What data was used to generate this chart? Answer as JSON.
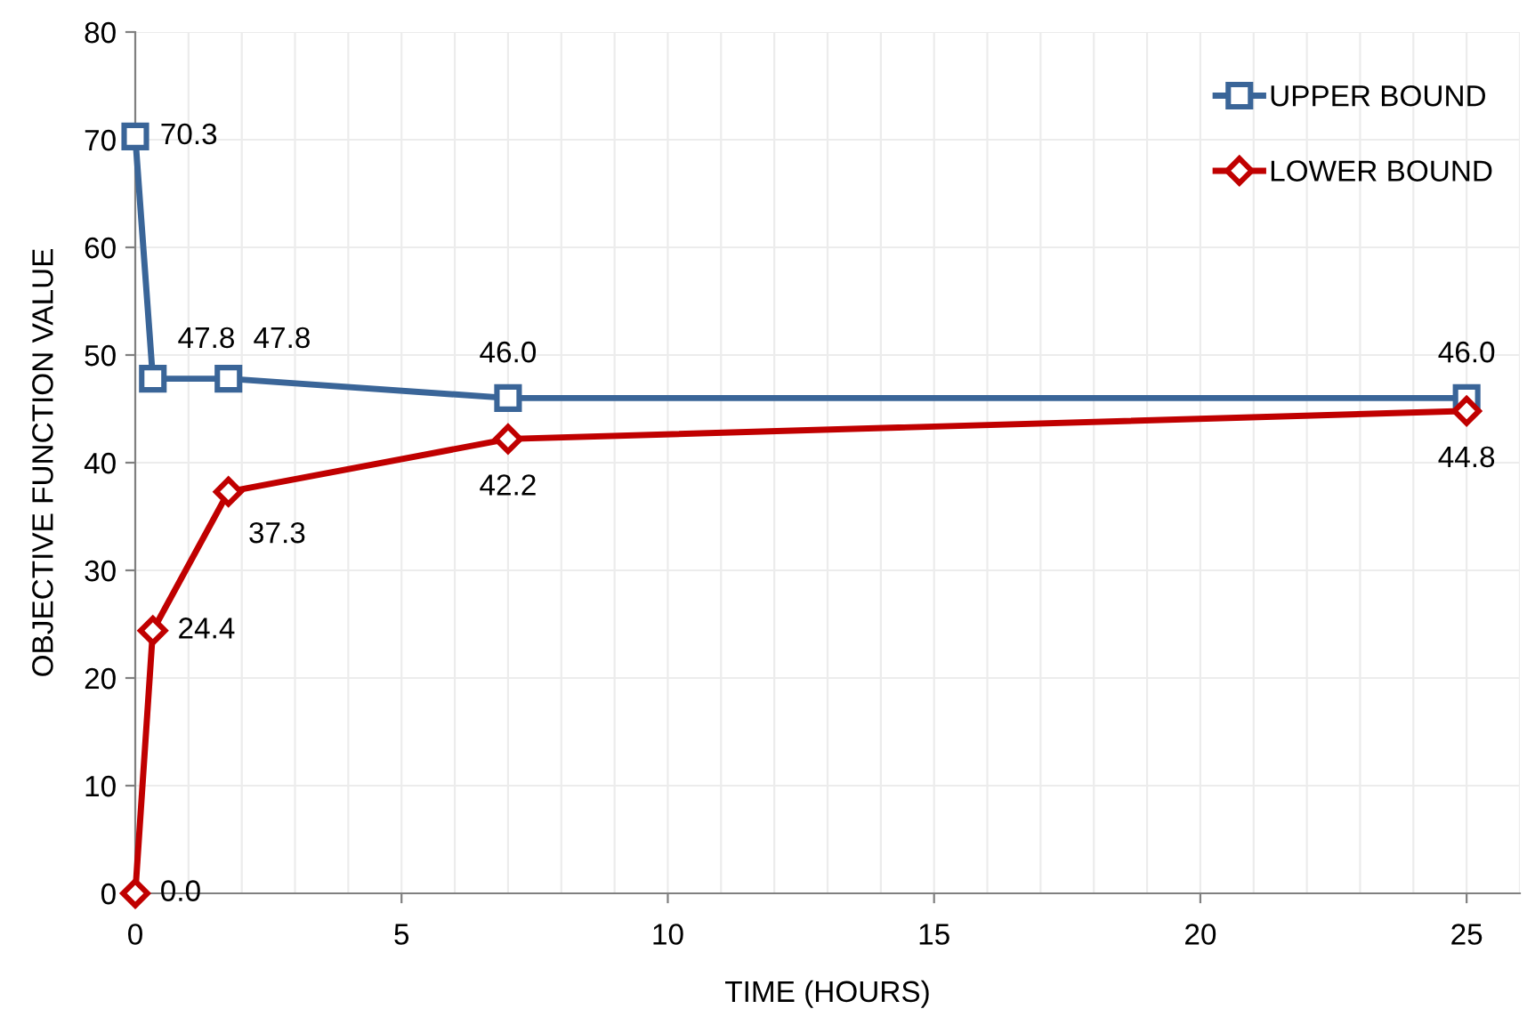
{
  "chart_data": {
    "type": "line",
    "xlabel": "TIME (HOURS)",
    "ylabel": "OBJECTIVE FUNCTION VALUE",
    "xlim": [
      0,
      26
    ],
    "xticks": [
      0,
      5,
      10,
      15,
      20,
      25
    ],
    "ylim": [
      0,
      80
    ],
    "yticks": [
      0,
      10,
      20,
      30,
      40,
      50,
      60,
      70,
      80
    ],
    "grid": true,
    "legend": "top right",
    "line_style": "solid",
    "series": [
      {
        "name": "UPPER BOUND",
        "color": "#3a6598",
        "marker": "square",
        "x": [
          0,
          0.33,
          1.75,
          7.0,
          25
        ],
        "values": [
          70.3,
          47.8,
          47.8,
          46.0,
          46.0
        ],
        "value_labels": [
          "70.3",
          "47.8",
          "47.8",
          "46.0",
          "46.0"
        ]
      },
      {
        "name": "LOWER BOUND",
        "color": "#c00000",
        "marker": "diamond",
        "x": [
          0,
          0.33,
          1.75,
          7.0,
          25
        ],
        "values": [
          0.0,
          24.4,
          37.3,
          42.2,
          44.8
        ],
        "value_labels": [
          "0.0",
          "24.4",
          "37.3",
          "42.2",
          "44.8"
        ]
      }
    ]
  }
}
